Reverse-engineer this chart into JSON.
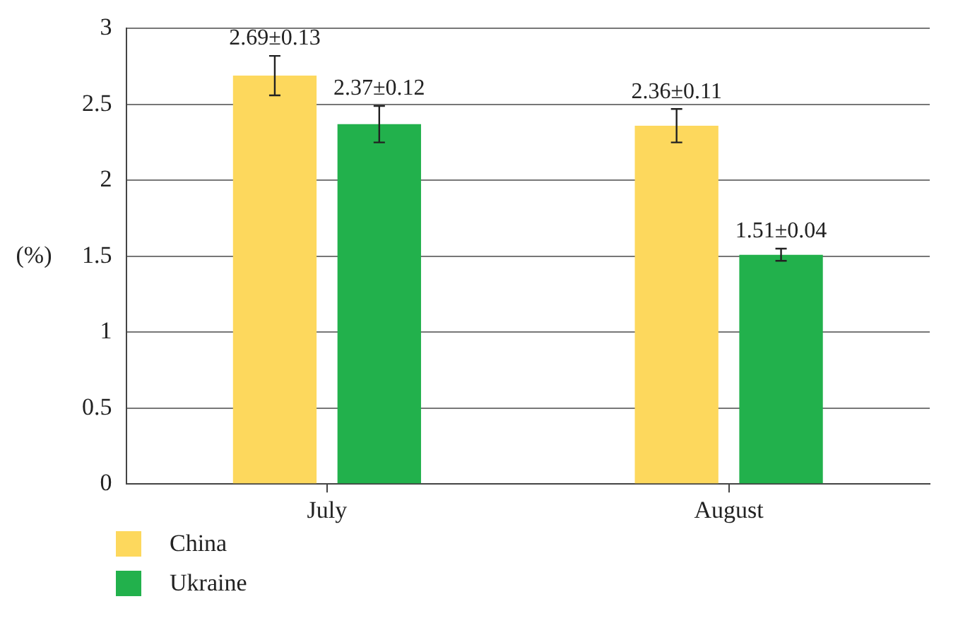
{
  "chart_data": {
    "type": "bar",
    "ylabel": "(%)",
    "categories": [
      "July",
      "August"
    ],
    "series": [
      {
        "name": "China",
        "color": "#fdd85d",
        "values": [
          2.69,
          2.36
        ],
        "errors": [
          0.13,
          0.11
        ],
        "value_labels": [
          "2.69±0.13",
          "2.36±0.11"
        ]
      },
      {
        "name": "Ukraine",
        "color": "#22b14c",
        "values": [
          2.37,
          1.51
        ],
        "errors": [
          0.12,
          0.04
        ],
        "value_labels": [
          "2.37±0.12",
          "1.51±0.04"
        ]
      }
    ],
    "ylim": [
      0,
      3
    ],
    "yticks": [
      0,
      0.5,
      1,
      1.5,
      2,
      2.5,
      3
    ],
    "grid": "y",
    "legend": "bottom left"
  }
}
